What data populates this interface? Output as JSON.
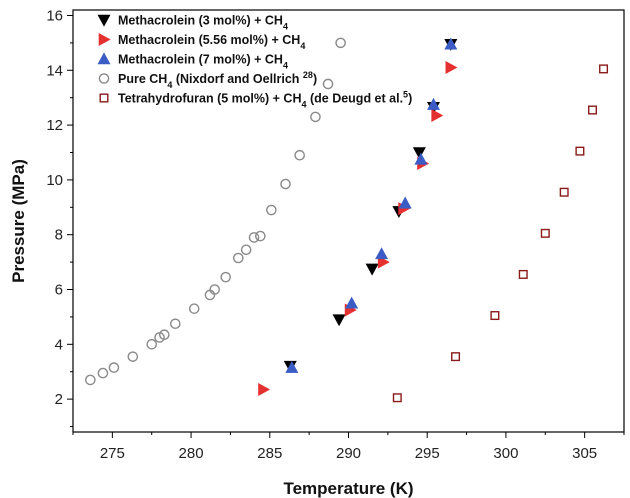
{
  "chart_data": {
    "type": "scatter",
    "title": "",
    "xlabel": "Temperature (K)",
    "ylabel": "Pressure (MPa)",
    "xlim": [
      272.5,
      307.5
    ],
    "ylim": [
      0.8,
      16.2
    ],
    "xticks": [
      275,
      280,
      285,
      290,
      295,
      300,
      305
    ],
    "yticks": [
      2,
      4,
      6,
      8,
      10,
      12,
      14,
      16
    ],
    "grid": false,
    "legend_position": "top-left",
    "series": [
      {
        "name": "Methacrolein (3 mol%) + CH4",
        "legend_parts": [
          [
            "Methacrolein (3 mol%) + CH",
            ""
          ],
          [
            "4",
            "sub"
          ]
        ],
        "marker": "triangle-down",
        "filled": true,
        "color": "#000000",
        "points": [
          [
            286.3,
            3.2
          ],
          [
            289.4,
            4.9
          ],
          [
            291.5,
            6.75
          ],
          [
            293.2,
            8.85
          ],
          [
            294.5,
            11.0
          ],
          [
            295.4,
            12.65
          ],
          [
            296.5,
            14.95
          ]
        ]
      },
      {
        "name": "Methacrolein (5.56 mol%) + CH4",
        "legend_parts": [
          [
            "Methacrolein (5.56 mol%) + CH",
            ""
          ],
          [
            "4",
            "sub"
          ]
        ],
        "marker": "triangle-right",
        "filled": true,
        "color": "#e53030",
        "points": [
          [
            284.6,
            2.35
          ],
          [
            290.1,
            5.25
          ],
          [
            292.2,
            7.0
          ],
          [
            293.5,
            8.95
          ],
          [
            294.7,
            10.6
          ],
          [
            295.6,
            12.35
          ],
          [
            296.5,
            14.1
          ]
        ]
      },
      {
        "name": "Methacrolein (7 mol%) + CH4",
        "legend_parts": [
          [
            "Methacrolein (7 mol%) + CH",
            ""
          ],
          [
            "4",
            "sub"
          ]
        ],
        "marker": "triangle-up",
        "filled": true,
        "color": "#3b5cc4",
        "points": [
          [
            286.4,
            3.15
          ],
          [
            290.2,
            5.5
          ],
          [
            292.1,
            7.3
          ],
          [
            293.6,
            9.15
          ],
          [
            294.6,
            10.75
          ],
          [
            295.4,
            12.75
          ],
          [
            296.5,
            14.95
          ]
        ]
      },
      {
        "name": "Pure CH4 (Nixdorf and Oellrich 28)",
        "legend_parts": [
          [
            "Pure CH",
            ""
          ],
          [
            "4",
            "sub"
          ],
          [
            " (Nixdorf and Oellrich ",
            ""
          ],
          [
            "28",
            "sup"
          ],
          [
            ")",
            ""
          ]
        ],
        "marker": "circle",
        "filled": false,
        "color": "#8a8a8a",
        "points": [
          [
            273.6,
            2.7
          ],
          [
            274.4,
            2.95
          ],
          [
            275.1,
            3.15
          ],
          [
            276.3,
            3.55
          ],
          [
            277.5,
            4.0
          ],
          [
            278.0,
            4.25
          ],
          [
            278.3,
            4.35
          ],
          [
            279.0,
            4.75
          ],
          [
            280.2,
            5.3
          ],
          [
            281.2,
            5.8
          ],
          [
            281.5,
            6.0
          ],
          [
            282.2,
            6.45
          ],
          [
            283.0,
            7.15
          ],
          [
            283.5,
            7.45
          ],
          [
            284.0,
            7.9
          ],
          [
            284.4,
            7.95
          ],
          [
            285.1,
            8.9
          ],
          [
            286.0,
            9.85
          ],
          [
            286.9,
            10.9
          ],
          [
            287.9,
            12.3
          ],
          [
            288.7,
            13.5
          ],
          [
            289.5,
            15.0
          ]
        ]
      },
      {
        "name": "Tetrahydrofuran (5 mol%) + CH4 (de Deugd et al. 5)",
        "legend_parts": [
          [
            "Tetrahydrofuran (5 mol%) + CH",
            ""
          ],
          [
            "4",
            "sub"
          ],
          [
            " (de Deugd et al.",
            ""
          ],
          [
            "5",
            "sup"
          ],
          [
            ")",
            ""
          ]
        ],
        "marker": "square",
        "filled": false,
        "color": "#8b1a1a",
        "points": [
          [
            293.1,
            2.05
          ],
          [
            296.8,
            3.55
          ],
          [
            299.3,
            5.05
          ],
          [
            301.1,
            6.55
          ],
          [
            302.5,
            8.05
          ],
          [
            303.7,
            9.55
          ],
          [
            304.7,
            11.05
          ],
          [
            305.5,
            12.55
          ],
          [
            306.2,
            14.05
          ]
        ]
      }
    ]
  }
}
